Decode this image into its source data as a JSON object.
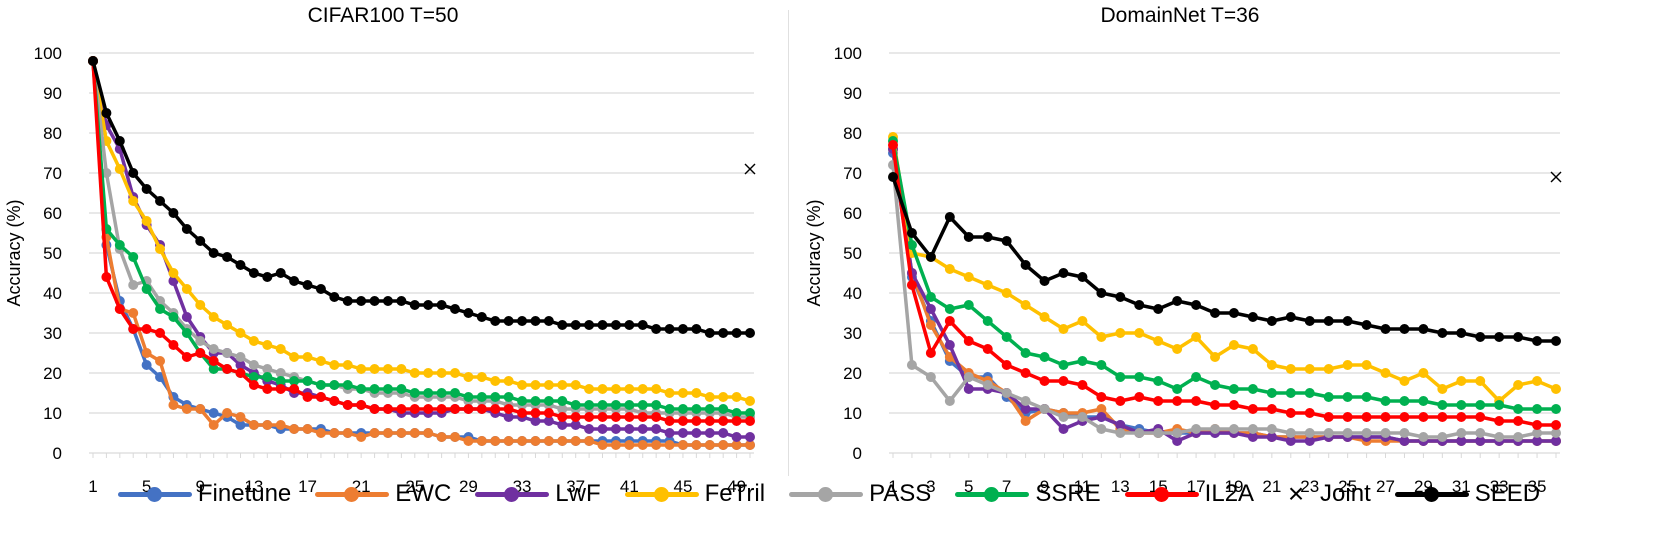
{
  "legend": [
    {
      "name": "Finetune",
      "color": "#4472C4",
      "marker": "circle"
    },
    {
      "name": "EWC",
      "color": "#ED7D31",
      "marker": "circle"
    },
    {
      "name": "LwF",
      "color": "#7030A0",
      "marker": "circle"
    },
    {
      "name": "FeTril",
      "color": "#FFC000",
      "marker": "circle"
    },
    {
      "name": "PASS",
      "color": "#A5A5A5",
      "marker": "circle"
    },
    {
      "name": "SSRE",
      "color": "#00B050",
      "marker": "circle"
    },
    {
      "name": "IL2A",
      "color": "#FF0000",
      "marker": "circle"
    },
    {
      "name": "Joint",
      "color": "#000000",
      "marker": "x"
    },
    {
      "name": "SEED",
      "color": "#000000",
      "marker": "circle"
    }
  ],
  "chart_data": [
    {
      "type": "line",
      "title": "CIFAR100 T=50",
      "xlabel": "",
      "ylabel": "Accuracy (%)",
      "ylim": [
        0,
        100
      ],
      "yticks": [
        0,
        10,
        20,
        30,
        40,
        50,
        60,
        70,
        80,
        90,
        100
      ],
      "xlim": [
        1,
        50
      ],
      "xticks": [
        1,
        5,
        9,
        13,
        17,
        21,
        25,
        29,
        33,
        37,
        41,
        45,
        49
      ],
      "grid": true,
      "legend_position": "bottom",
      "joint": {
        "x": 50,
        "y": 71
      },
      "series": [
        {
          "name": "Finetune",
          "values": [
            98,
            52,
            38,
            31,
            22,
            19,
            14,
            12,
            11,
            10,
            9,
            7,
            7,
            7,
            6,
            6,
            6,
            6,
            5,
            5,
            5,
            5,
            5,
            5,
            5,
            5,
            4,
            4,
            4,
            3,
            3,
            3,
            3,
            3,
            3,
            3,
            3,
            3,
            3,
            3,
            3,
            3,
            3,
            3,
            2,
            2,
            2,
            2,
            2,
            2
          ]
        },
        {
          "name": "EWC",
          "values": [
            98,
            54,
            36,
            35,
            25,
            23,
            12,
            11,
            11,
            7,
            10,
            9,
            7,
            7,
            7,
            6,
            6,
            5,
            5,
            5,
            4,
            5,
            5,
            5,
            5,
            5,
            4,
            4,
            3,
            3,
            3,
            3,
            3,
            3,
            3,
            3,
            3,
            3,
            2,
            2,
            2,
            2,
            2,
            2,
            2,
            2,
            2,
            2,
            2,
            2
          ]
        },
        {
          "name": "LwF",
          "values": [
            98,
            82,
            76,
            64,
            57,
            52,
            43,
            34,
            29,
            25,
            25,
            22,
            20,
            18,
            17,
            15,
            15,
            14,
            13,
            12,
            12,
            11,
            11,
            10,
            10,
            10,
            10,
            11,
            11,
            11,
            10,
            9,
            9,
            8,
            8,
            7,
            7,
            6,
            6,
            6,
            6,
            6,
            6,
            5,
            5,
            5,
            5,
            5,
            4,
            4
          ]
        },
        {
          "name": "FeTril",
          "values": [
            98,
            78,
            71,
            63,
            58,
            51,
            45,
            41,
            37,
            34,
            32,
            30,
            28,
            27,
            26,
            24,
            24,
            23,
            22,
            22,
            21,
            21,
            21,
            21,
            20,
            20,
            20,
            20,
            19,
            19,
            18,
            18,
            17,
            17,
            17,
            17,
            17,
            16,
            16,
            16,
            16,
            16,
            16,
            15,
            15,
            15,
            14,
            14,
            14,
            13
          ]
        },
        {
          "name": "PASS",
          "values": [
            98,
            70,
            51,
            42,
            43,
            38,
            35,
            31,
            28,
            26,
            25,
            24,
            22,
            21,
            20,
            19,
            18,
            17,
            17,
            16,
            16,
            15,
            15,
            15,
            14,
            14,
            14,
            14,
            13,
            13,
            13,
            12,
            12,
            12,
            12,
            11,
            11,
            11,
            11,
            11,
            11,
            10,
            10,
            10,
            10,
            10,
            10,
            10,
            9,
            9
          ]
        },
        {
          "name": "SSRE",
          "values": [
            98,
            56,
            52,
            49,
            41,
            36,
            34,
            30,
            25,
            21,
            21,
            20,
            19,
            19,
            18,
            18,
            18,
            17,
            17,
            17,
            16,
            16,
            16,
            16,
            15,
            15,
            15,
            15,
            14,
            14,
            14,
            14,
            13,
            13,
            13,
            13,
            12,
            12,
            12,
            12,
            12,
            12,
            12,
            11,
            11,
            11,
            11,
            11,
            10,
            10
          ]
        },
        {
          "name": "IL2A",
          "values": [
            98,
            44,
            36,
            31,
            31,
            30,
            27,
            24,
            25,
            23,
            21,
            20,
            17,
            16,
            16,
            16,
            14,
            14,
            13,
            12,
            12,
            11,
            11,
            11,
            11,
            11,
            11,
            11,
            11,
            11,
            11,
            11,
            10,
            10,
            10,
            9,
            9,
            9,
            9,
            9,
            9,
            9,
            9,
            8,
            8,
            8,
            8,
            8,
            8,
            8
          ]
        },
        {
          "name": "SEED",
          "values": [
            98,
            85,
            78,
            70,
            66,
            63,
            60,
            56,
            53,
            50,
            49,
            47,
            45,
            44,
            45,
            43,
            42,
            41,
            39,
            38,
            38,
            38,
            38,
            38,
            37,
            37,
            37,
            36,
            35,
            34,
            33,
            33,
            33,
            33,
            33,
            32,
            32,
            32,
            32,
            32,
            32,
            32,
            31,
            31,
            31,
            31,
            30,
            30,
            30,
            30
          ]
        }
      ]
    },
    {
      "type": "line",
      "title": "DomainNet T=36",
      "xlabel": "",
      "ylabel": "Accuracy (%)",
      "ylim": [
        0,
        100
      ],
      "yticks": [
        0,
        10,
        20,
        30,
        40,
        50,
        60,
        70,
        80,
        90,
        100
      ],
      "xlim": [
        1,
        36
      ],
      "xticks": [
        1,
        3,
        5,
        7,
        9,
        11,
        13,
        15,
        17,
        19,
        21,
        23,
        25,
        27,
        29,
        31,
        33,
        35
      ],
      "grid": true,
      "legend_position": "bottom",
      "joint": {
        "x": 36,
        "y": 69
      },
      "series": [
        {
          "name": "Finetune",
          "values": [
            75,
            44,
            33,
            23,
            19,
            19,
            14,
            10,
            11,
            10,
            9,
            9,
            7,
            6,
            5,
            5,
            5,
            5,
            5,
            5,
            4,
            4,
            4,
            4,
            4,
            4,
            4,
            3,
            3,
            3,
            3,
            3,
            3,
            3,
            3,
            3
          ]
        },
        {
          "name": "EWC",
          "values": [
            76,
            45,
            32,
            24,
            20,
            18,
            15,
            8,
            11,
            10,
            10,
            11,
            6,
            5,
            5,
            6,
            5,
            6,
            5,
            5,
            4,
            4,
            4,
            4,
            4,
            3,
            3,
            3,
            3,
            3,
            3,
            3,
            3,
            3,
            3,
            3
          ]
        },
        {
          "name": "LwF",
          "values": [
            76,
            45,
            36,
            27,
            16,
            16,
            15,
            11,
            11,
            6,
            8,
            9,
            7,
            5,
            6,
            3,
            5,
            5,
            5,
            4,
            4,
            3,
            3,
            4,
            4,
            4,
            4,
            3,
            3,
            3,
            3,
            3,
            3,
            3,
            3,
            3
          ]
        },
        {
          "name": "FeTril",
          "values": [
            79,
            50,
            49,
            46,
            44,
            42,
            40,
            37,
            34,
            31,
            33,
            29,
            30,
            30,
            28,
            26,
            29,
            24,
            27,
            26,
            22,
            21,
            21,
            21,
            22,
            22,
            20,
            18,
            20,
            16,
            18,
            18,
            13,
            17,
            18,
            16
          ]
        },
        {
          "name": "PASS",
          "values": [
            72,
            22,
            19,
            13,
            19,
            17,
            15,
            13,
            11,
            9,
            9,
            6,
            5,
            5,
            5,
            5,
            6,
            6,
            6,
            6,
            6,
            5,
            5,
            5,
            5,
            5,
            5,
            5,
            4,
            4,
            5,
            5,
            4,
            4,
            5,
            5
          ]
        },
        {
          "name": "SSRE",
          "values": [
            78,
            52,
            39,
            36,
            37,
            33,
            29,
            25,
            24,
            22,
            23,
            22,
            19,
            19,
            18,
            16,
            19,
            17,
            16,
            16,
            15,
            15,
            15,
            14,
            14,
            14,
            13,
            13,
            13,
            12,
            12,
            12,
            12,
            11,
            11,
            11
          ]
        },
        {
          "name": "IL2A",
          "values": [
            77,
            42,
            25,
            33,
            28,
            26,
            22,
            20,
            18,
            18,
            17,
            14,
            13,
            14,
            13,
            13,
            13,
            12,
            12,
            11,
            11,
            10,
            10,
            9,
            9,
            9,
            9,
            9,
            9,
            9,
            9,
            9,
            8,
            8,
            7,
            7
          ]
        },
        {
          "name": "SEED",
          "values": [
            69,
            55,
            49,
            59,
            54,
            54,
            53,
            47,
            43,
            45,
            44,
            40,
            39,
            37,
            36,
            38,
            37,
            35,
            35,
            34,
            33,
            34,
            33,
            33,
            33,
            32,
            31,
            31,
            31,
            30,
            30,
            29,
            29,
            29,
            28,
            28
          ]
        }
      ]
    }
  ]
}
